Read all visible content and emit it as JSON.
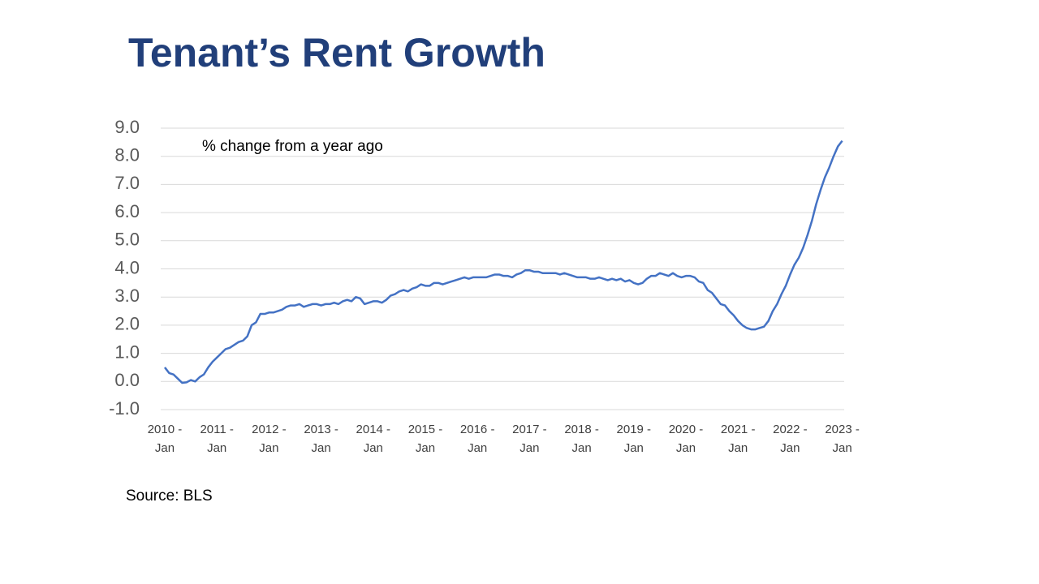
{
  "chart_data": {
    "type": "line",
    "title": "Tenant’s Rent Growth",
    "annotation": "% change from a year ago",
    "source": "Source: BLS",
    "categories": [
      "2010 - Jan",
      null,
      null,
      null,
      null,
      null,
      null,
      null,
      null,
      null,
      null,
      null,
      "2011 - Jan",
      null,
      null,
      null,
      null,
      null,
      null,
      null,
      null,
      null,
      null,
      null,
      "2012 - Jan",
      null,
      null,
      null,
      null,
      null,
      null,
      null,
      null,
      null,
      null,
      null,
      "2013 - Jan",
      null,
      null,
      null,
      null,
      null,
      null,
      null,
      null,
      null,
      null,
      null,
      "2014 - Jan",
      null,
      null,
      null,
      null,
      null,
      null,
      null,
      null,
      null,
      null,
      null,
      "2015 - Jan",
      null,
      null,
      null,
      null,
      null,
      null,
      null,
      null,
      null,
      null,
      null,
      "2016 - Jan",
      null,
      null,
      null,
      null,
      null,
      null,
      null,
      null,
      null,
      null,
      null,
      "2017 - Jan",
      null,
      null,
      null,
      null,
      null,
      null,
      null,
      null,
      null,
      null,
      null,
      "2018 - Jan",
      null,
      null,
      null,
      null,
      null,
      null,
      null,
      null,
      null,
      null,
      null,
      "2019 - Jan",
      null,
      null,
      null,
      null,
      null,
      null,
      null,
      null,
      null,
      null,
      null,
      "2020 - Jan",
      null,
      null,
      null,
      null,
      null,
      null,
      null,
      null,
      null,
      null,
      null,
      "2021 - Jan",
      null,
      null,
      null,
      null,
      null,
      null,
      null,
      null,
      null,
      null,
      null,
      "2022 - Jan",
      null,
      null,
      null,
      null,
      null,
      null,
      null,
      null,
      null,
      null,
      null,
      "2023 - Jan"
    ],
    "color": "#4472c4",
    "values": [
      0.5,
      0.3,
      0.25,
      0.1,
      -0.05,
      -0.03,
      0.05,
      0.0,
      0.15,
      0.25,
      0.5,
      0.7,
      0.85,
      1.0,
      1.15,
      1.2,
      1.3,
      1.4,
      1.45,
      1.6,
      2.0,
      2.1,
      2.4,
      2.4,
      2.45,
      2.45,
      2.5,
      2.55,
      2.65,
      2.7,
      2.7,
      2.75,
      2.65,
      2.7,
      2.75,
      2.75,
      2.7,
      2.75,
      2.75,
      2.8,
      2.75,
      2.85,
      2.9,
      2.85,
      3.0,
      2.95,
      2.75,
      2.8,
      2.85,
      2.85,
      2.8,
      2.9,
      3.05,
      3.1,
      3.2,
      3.25,
      3.2,
      3.3,
      3.35,
      3.45,
      3.4,
      3.4,
      3.5,
      3.5,
      3.45,
      3.5,
      3.55,
      3.6,
      3.65,
      3.7,
      3.65,
      3.7,
      3.7,
      3.7,
      3.7,
      3.75,
      3.8,
      3.8,
      3.75,
      3.75,
      3.7,
      3.8,
      3.85,
      3.95,
      3.95,
      3.9,
      3.9,
      3.85,
      3.85,
      3.85,
      3.85,
      3.8,
      3.85,
      3.8,
      3.75,
      3.7,
      3.7,
      3.7,
      3.65,
      3.65,
      3.7,
      3.65,
      3.6,
      3.65,
      3.6,
      3.65,
      3.55,
      3.6,
      3.5,
      3.45,
      3.5,
      3.65,
      3.75,
      3.75,
      3.85,
      3.8,
      3.75,
      3.85,
      3.75,
      3.7,
      3.75,
      3.75,
      3.7,
      3.55,
      3.5,
      3.25,
      3.15,
      2.95,
      2.75,
      2.7,
      2.5,
      2.35,
      2.15,
      2.0,
      1.9,
      1.85,
      1.85,
      1.9,
      1.95,
      2.15,
      2.5,
      2.75,
      3.1,
      3.4,
      3.8,
      4.15,
      4.4,
      4.75,
      5.2,
      5.7,
      6.3,
      6.8,
      7.25,
      7.6,
      8.0,
      8.35,
      8.55
    ],
    "ylim": [
      -1,
      9
    ],
    "yticks": [
      {
        "value": -1,
        "label": "-1.0"
      },
      {
        "value": 0,
        "label": "0.0"
      },
      {
        "value": 1,
        "label": "1.0"
      },
      {
        "value": 2,
        "label": "2.0"
      },
      {
        "value": 3,
        "label": "3.0"
      },
      {
        "value": 4,
        "label": "4.0"
      },
      {
        "value": 5,
        "label": "5.0"
      },
      {
        "value": 6,
        "label": "6.0"
      },
      {
        "value": 7,
        "label": "7.0"
      },
      {
        "value": 8,
        "label": "8.0"
      },
      {
        "value": 9,
        "label": "9.0"
      }
    ],
    "grid": true
  }
}
